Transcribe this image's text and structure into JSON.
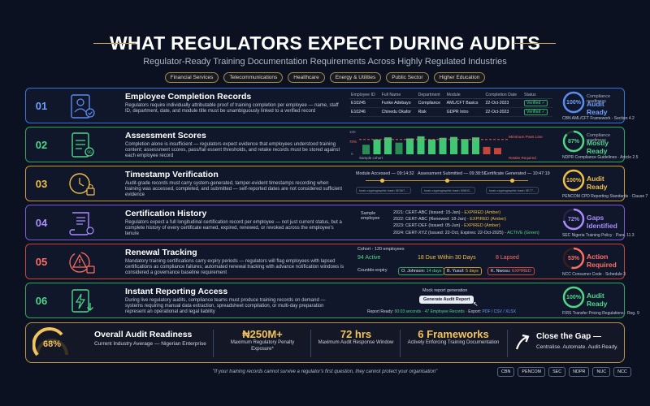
{
  "header": {
    "title": "WHAT REGULATORS EXPECT DURING AUDITS",
    "subtitle": "Regulator-Ready Training Documentation Requirements Across Highly Regulated Industries",
    "tags": [
      "Financial Services",
      "Telecommunications",
      "Healthcare",
      "Energy & Utilities",
      "Public Sector",
      "Higher Education"
    ]
  },
  "rows": [
    {
      "num": "01",
      "title": "Employee Completion Records",
      "desc": "Regulators require individually attributable proof of training completion per employee — name, staff ID, department, date, and module title must be unambiguously linked to a verified record",
      "gauge_value": "100%",
      "gauge_label": "Compliance readiness",
      "status": "Audit Ready",
      "ref": "CBN AML/CFT Framework - Section 4.2"
    },
    {
      "num": "02",
      "title": "Assessment Scores",
      "desc": "Completion alone is insufficient — regulators expect evidence that employees understood training content; assessment scores, pass/fail essent thresholds, and retake records must be stored against each employee record",
      "gauge_value": "87%",
      "gauge_label": "Compliance readiness",
      "status": "Mostly Ready",
      "ref": "NDPR Compliance Guidelines - Article 2.5"
    },
    {
      "num": "03",
      "title": "Timestamp Verification",
      "desc": "Audit-grade records must carry system-generated, tamper-evident timestamps recording when training was accessed, completed, and submitted — self-reported dates are not considered sufficient evidence",
      "gauge_value": "100%",
      "gauge_label": "",
      "status": "Audit Ready",
      "ref": "PENCOM CPD Reporting Standards · Clause 7"
    },
    {
      "num": "04",
      "title": "Certification History",
      "desc": "Regulators expect a full longitudinal certification record per employee — not just current status, but a complete history of every certificate earned, expired, renewed, or revoked across the employee's tenure",
      "gauge_value": "72%",
      "gauge_label": "",
      "status": "Gaps Identified",
      "ref": "SEC Nigeria Training Policy · Para. 11.3"
    },
    {
      "num": "05",
      "title": "Renewal Tracking",
      "desc": "Mandatory training certifications carry expiry periods — regulators will flag employees with lapsed certifications as compliance failures; automated renewal tracking with advance notification windows is considered a governance baseline requirement",
      "gauge_value": "53%",
      "gauge_label": "",
      "status": "Action Required",
      "ref": "NCC Consumer Code · Schedule 3"
    },
    {
      "num": "06",
      "title": "Instant Reporting Access",
      "desc": "During live regulatory audits, compliance teams must produce training records on demand — systems requiring manual data extraction, spreadsheet compilation, or multi-day preparation represent an operational and legal liability",
      "gauge_value": "100%",
      "gauge_label": "",
      "status": "Audit Ready",
      "ref": "FIRS Transfer Pricing Regulations · Reg. 9"
    }
  ],
  "employee_table": {
    "headers": [
      "Employee ID",
      "Full Name",
      "Department",
      "Module",
      "Completion Date",
      "Status"
    ],
    "rows": [
      [
        "E10245",
        "Funke Adebayo",
        "Compliance",
        "AML/CFT Basics",
        "22-Oct-2023",
        "Verified ✓"
      ],
      [
        "E10246",
        "Chinedu Okafor",
        "Risk",
        "GDPR Intro",
        "22-Oct-2023",
        "Verified ✓"
      ]
    ]
  },
  "assessment": {
    "y_top": "100",
    "y_mid": "70%",
    "y_bottom": "0",
    "threshold_label": "Minimum Pass Line",
    "sample_label": "Sample cohort",
    "retake_label": "Retake Required"
  },
  "timestamps": {
    "events": [
      "Module Accessed — 09:14:32",
      "Assessment Submitted — 09:38:51",
      "Certificate Generated — 10:47:19"
    ],
    "hashes": [
      "hash cryptographic hash 0E567...",
      "hash cryptographic hash 00800...",
      "hash cryptographic hash 0E77..."
    ]
  },
  "cert_history": {
    "label": "Sample employee",
    "entries": [
      {
        "text": "2021: CERT-ABC (Issued: 15-Jan) - ",
        "status": "EXPIRED (Amber)"
      },
      {
        "text": "2022: CERT-ABC (Renewed: 18-Jan) - ",
        "status": "EXPIRED (Amber)"
      },
      {
        "text": "2023: CERT-DEF (Issued: 05-Jun) - ",
        "status": "EXPIRED (Amber)"
      },
      {
        "text": "2024: CERT-XYZ (Issued: 22-Oct, Expires: 22-Oct-2025) - ",
        "status": "ACTIVE (Green)"
      }
    ]
  },
  "renewal": {
    "cohort": "Cohort - 120 employees",
    "active": "94 Active",
    "due": "18 Due Within 30 Days",
    "lapsed": "8 Lapsed",
    "countdown_label": "Countdo-expiry",
    "people": [
      {
        "name": "O. Johnson:",
        "status": "14 days"
      },
      {
        "name": "B. Yusuf:",
        "status": "5 days"
      },
      {
        "name": "K. Nwosu:",
        "status": "EXPIRED"
      }
    ]
  },
  "reporting": {
    "mock_label": "Mock report generation",
    "button": "Generate Audit Report",
    "ready_label": "Report Ready:",
    "ready_time": "00:03 seconds",
    "records": "· 47 Employee Records ·",
    "export_label": "Export:",
    "formats": "PDF / CSV / XLSX"
  },
  "summary": {
    "gauge": "68%",
    "title": "Overall Audit Readiness",
    "title_sub": "Current Industry Average — Nigerian Enterprise",
    "stat1": "₦250M+",
    "stat1_desc": "Maximum Regulatory Penalty Exposure*",
    "stat2": "72 hrs",
    "stat2_desc": "Maximum Audit Response Window",
    "stat3": "6 Frameworks",
    "stat3_desc": "Actively Enforcing Training Documentation",
    "cta": "Close the Gap —",
    "cta_sub": "Centralise. Automate. Audit-Ready."
  },
  "footer": {
    "quote": "\"If your training records cannot survive a regulator's first question, they cannot protect your organisation\"",
    "regulators": [
      "CBN",
      "PENCOM",
      "SEC",
      "NDPR",
      "NUC",
      "NCC"
    ]
  },
  "colors": {
    "blue": "#3d72d9",
    "green": "#2fa562",
    "amber": "#c99a2c",
    "purple": "#7b5bd0",
    "red": "#c5453c",
    "gold": "#f3c35c"
  }
}
